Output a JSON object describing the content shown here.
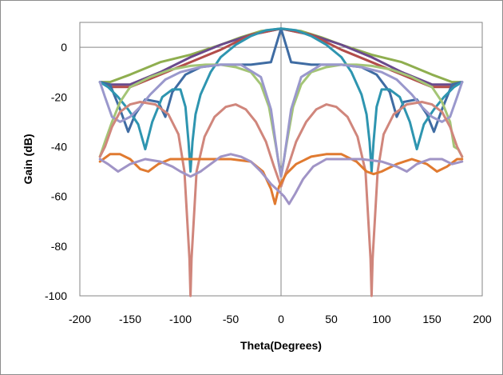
{
  "chart_data": {
    "type": "line",
    "title": "",
    "xlabel": "Theta(Degrees)",
    "ylabel": "Gain (dB)",
    "xlim": [
      -200,
      200
    ],
    "ylim": [
      -100,
      10
    ],
    "xticks": [
      -200,
      -150,
      -100,
      -50,
      0,
      50,
      100,
      150,
      200
    ],
    "yticks": [
      0,
      -20,
      -40,
      -60,
      -80,
      -100
    ],
    "grid": false,
    "legend": "none",
    "series": [
      {
        "color": "#8fae4f",
        "width": 3,
        "points": [
          [
            -180,
            -14
          ],
          [
            -170,
            -14
          ],
          [
            -150,
            -11
          ],
          [
            -120,
            -6
          ],
          [
            -90,
            -3
          ],
          [
            -60,
            1
          ],
          [
            -40,
            4
          ],
          [
            -20,
            6.5
          ],
          [
            0,
            7.5
          ],
          [
            20,
            6.5
          ],
          [
            40,
            4
          ],
          [
            60,
            1
          ],
          [
            90,
            -3
          ],
          [
            120,
            -6
          ],
          [
            150,
            -11
          ],
          [
            170,
            -14
          ],
          [
            180,
            -14
          ]
        ]
      },
      {
        "color": "#6a4a8c",
        "width": 3,
        "points": [
          [
            -180,
            -14
          ],
          [
            -170,
            -15
          ],
          [
            -150,
            -15
          ],
          [
            -120,
            -10
          ],
          [
            -90,
            -4
          ],
          [
            -60,
            1
          ],
          [
            -30,
            5
          ],
          [
            0,
            7.5
          ],
          [
            30,
            5
          ],
          [
            60,
            1
          ],
          [
            90,
            -4
          ],
          [
            120,
            -10
          ],
          [
            150,
            -15
          ],
          [
            170,
            -15
          ],
          [
            180,
            -14
          ]
        ]
      },
      {
        "color": "#b24d4a",
        "width": 3,
        "points": [
          [
            -180,
            -14
          ],
          [
            -170,
            -16
          ],
          [
            -150,
            -16
          ],
          [
            -120,
            -11
          ],
          [
            -90,
            -6
          ],
          [
            -60,
            -1
          ],
          [
            -30,
            5
          ],
          [
            0,
            7.5
          ],
          [
            30,
            5
          ],
          [
            60,
            -1
          ],
          [
            90,
            -6
          ],
          [
            120,
            -11
          ],
          [
            150,
            -16
          ],
          [
            170,
            -16
          ],
          [
            180,
            -14
          ]
        ]
      },
      {
        "color": "#3f6ca3",
        "width": 3,
        "points": [
          [
            -180,
            -14
          ],
          [
            -170,
            -15
          ],
          [
            -160,
            -25
          ],
          [
            -152,
            -34
          ],
          [
            -145,
            -27
          ],
          [
            -135,
            -21
          ],
          [
            -122,
            -22
          ],
          [
            -115,
            -28
          ],
          [
            -108,
            -18
          ],
          [
            -95,
            -11
          ],
          [
            -80,
            -8
          ],
          [
            -60,
            -7
          ],
          [
            -30,
            -7
          ],
          [
            -10,
            -6
          ],
          [
            0,
            7.5
          ],
          [
            10,
            -6
          ],
          [
            30,
            -7
          ],
          [
            60,
            -7
          ],
          [
            80,
            -8
          ],
          [
            95,
            -11
          ],
          [
            108,
            -18
          ],
          [
            115,
            -28
          ],
          [
            122,
            -22
          ],
          [
            135,
            -21
          ],
          [
            145,
            -27
          ],
          [
            152,
            -34
          ],
          [
            160,
            -25
          ],
          [
            170,
            -15
          ],
          [
            180,
            -14
          ]
        ]
      },
      {
        "color": "#2e95b0",
        "width": 3,
        "points": [
          [
            -180,
            -14
          ],
          [
            -172,
            -16
          ],
          [
            -162,
            -20
          ],
          [
            -152,
            -25
          ],
          [
            -142,
            -31
          ],
          [
            -135,
            -41
          ],
          [
            -128,
            -30
          ],
          [
            -118,
            -20
          ],
          [
            -108,
            -17
          ],
          [
            -100,
            -17
          ],
          [
            -95,
            -24
          ],
          [
            -92,
            -38
          ],
          [
            -90,
            -50
          ],
          [
            -88,
            -38
          ],
          [
            -85,
            -27
          ],
          [
            -80,
            -19
          ],
          [
            -70,
            -10
          ],
          [
            -60,
            -4
          ],
          [
            -45,
            1
          ],
          [
            -30,
            4.5
          ],
          [
            -15,
            6.8
          ],
          [
            0,
            7.5
          ],
          [
            15,
            6.8
          ],
          [
            30,
            4.5
          ],
          [
            45,
            1
          ],
          [
            60,
            -4
          ],
          [
            70,
            -10
          ],
          [
            80,
            -19
          ],
          [
            85,
            -27
          ],
          [
            88,
            -38
          ],
          [
            90,
            -50
          ],
          [
            92,
            -38
          ],
          [
            95,
            -24
          ],
          [
            100,
            -17
          ],
          [
            108,
            -17
          ],
          [
            118,
            -20
          ],
          [
            128,
            -30
          ],
          [
            135,
            -41
          ],
          [
            142,
            -31
          ],
          [
            152,
            -25
          ],
          [
            162,
            -20
          ],
          [
            172,
            -16
          ],
          [
            180,
            -14
          ]
        ]
      },
      {
        "color": "#a4c576",
        "width": 3,
        "points": [
          [
            -180,
            -44
          ],
          [
            -175,
            -38
          ],
          [
            -168,
            -30
          ],
          [
            -160,
            -22
          ],
          [
            -150,
            -16
          ],
          [
            -130,
            -12
          ],
          [
            -110,
            -9
          ],
          [
            -90,
            -7.5
          ],
          [
            -75,
            -7
          ],
          [
            -60,
            -7
          ],
          [
            -45,
            -8
          ],
          [
            -30,
            -10
          ],
          [
            -20,
            -15
          ],
          [
            -12,
            -24
          ],
          [
            -5,
            -40
          ],
          [
            0,
            -52
          ],
          [
            5,
            -40
          ],
          [
            12,
            -24
          ],
          [
            20,
            -15
          ],
          [
            30,
            -10
          ],
          [
            45,
            -8
          ],
          [
            60,
            -7
          ],
          [
            75,
            -7
          ],
          [
            90,
            -7.5
          ],
          [
            110,
            -9
          ],
          [
            130,
            -12
          ],
          [
            150,
            -16
          ],
          [
            160,
            -22
          ],
          [
            168,
            -30
          ],
          [
            172,
            -40
          ],
          [
            176,
            -41
          ],
          [
            180,
            -44
          ]
        ]
      },
      {
        "color": "#9a98cc",
        "width": 3,
        "points": [
          [
            -180,
            -14
          ],
          [
            -175,
            -20
          ],
          [
            -168,
            -28
          ],
          [
            -160,
            -30
          ],
          [
            -150,
            -28
          ],
          [
            -140,
            -24
          ],
          [
            -130,
            -19
          ],
          [
            -115,
            -13
          ],
          [
            -100,
            -10
          ],
          [
            -80,
            -8
          ],
          [
            -60,
            -7
          ],
          [
            -40,
            -7
          ],
          [
            -20,
            -12
          ],
          [
            -10,
            -25
          ],
          [
            -3,
            -45
          ],
          [
            0,
            -52
          ],
          [
            3,
            -45
          ],
          [
            10,
            -25
          ],
          [
            20,
            -12
          ],
          [
            40,
            -7
          ],
          [
            60,
            -7
          ],
          [
            80,
            -8
          ],
          [
            100,
            -10
          ],
          [
            115,
            -13
          ],
          [
            130,
            -19
          ],
          [
            140,
            -24
          ],
          [
            150,
            -28
          ],
          [
            160,
            -30
          ],
          [
            168,
            -28
          ],
          [
            175,
            -20
          ],
          [
            180,
            -14
          ]
        ]
      },
      {
        "color": "#d0867c",
        "width": 3,
        "points": [
          [
            -180,
            -44
          ],
          [
            -175,
            -40
          ],
          [
            -168,
            -32
          ],
          [
            -160,
            -26
          ],
          [
            -150,
            -23
          ],
          [
            -140,
            -22
          ],
          [
            -125,
            -23
          ],
          [
            -112,
            -27
          ],
          [
            -102,
            -35
          ],
          [
            -96,
            -50
          ],
          [
            -91,
            -85
          ],
          [
            -90,
            -100
          ],
          [
            -89,
            -85
          ],
          [
            -84,
            -50
          ],
          [
            -76,
            -36
          ],
          [
            -66,
            -28
          ],
          [
            -55,
            -24
          ],
          [
            -45,
            -23
          ],
          [
            -35,
            -25
          ],
          [
            -25,
            -30
          ],
          [
            -15,
            -38
          ],
          [
            -7,
            -48
          ],
          [
            0,
            -56
          ],
          [
            7,
            -48
          ],
          [
            15,
            -38
          ],
          [
            25,
            -30
          ],
          [
            35,
            -25
          ],
          [
            45,
            -23
          ],
          [
            55,
            -24
          ],
          [
            66,
            -28
          ],
          [
            76,
            -36
          ],
          [
            84,
            -50
          ],
          [
            89,
            -85
          ],
          [
            90,
            -100
          ],
          [
            91,
            -85
          ],
          [
            96,
            -50
          ],
          [
            102,
            -35
          ],
          [
            112,
            -27
          ],
          [
            125,
            -23
          ],
          [
            140,
            -22
          ],
          [
            150,
            -23
          ],
          [
            160,
            -26
          ],
          [
            168,
            -32
          ],
          [
            175,
            -40
          ],
          [
            180,
            -44
          ]
        ]
      },
      {
        "color": "#e07a30",
        "width": 3,
        "points": [
          [
            -180,
            -46
          ],
          [
            -170,
            -43
          ],
          [
            -160,
            -43
          ],
          [
            -150,
            -45
          ],
          [
            -140,
            -49
          ],
          [
            -132,
            -50
          ],
          [
            -122,
            -47
          ],
          [
            -110,
            -45
          ],
          [
            -90,
            -45
          ],
          [
            -70,
            -45
          ],
          [
            -50,
            -45
          ],
          [
            -30,
            -46
          ],
          [
            -18,
            -50
          ],
          [
            -10,
            -57
          ],
          [
            -6,
            -63
          ],
          [
            -2,
            -56
          ],
          [
            5,
            -51
          ],
          [
            15,
            -47
          ],
          [
            30,
            -44
          ],
          [
            45,
            -43
          ],
          [
            60,
            -43
          ],
          [
            75,
            -46
          ],
          [
            85,
            -50
          ],
          [
            92,
            -51
          ],
          [
            100,
            -50
          ],
          [
            115,
            -47
          ],
          [
            130,
            -45
          ],
          [
            145,
            -47
          ],
          [
            155,
            -50
          ],
          [
            165,
            -48
          ],
          [
            175,
            -45
          ],
          [
            180,
            -45
          ]
        ]
      },
      {
        "color": "#a094c6",
        "width": 3,
        "points": [
          [
            -180,
            -45
          ],
          [
            -172,
            -47
          ],
          [
            -162,
            -50
          ],
          [
            -150,
            -47
          ],
          [
            -135,
            -45
          ],
          [
            -120,
            -46
          ],
          [
            -108,
            -48
          ],
          [
            -100,
            -50
          ],
          [
            -90,
            -52
          ],
          [
            -80,
            -50
          ],
          [
            -70,
            -47
          ],
          [
            -60,
            -44
          ],
          [
            -50,
            -43
          ],
          [
            -40,
            -44
          ],
          [
            -30,
            -46
          ],
          [
            -20,
            -50
          ],
          [
            -10,
            -55
          ],
          [
            -2,
            -58
          ],
          [
            3,
            -60
          ],
          [
            8,
            -63
          ],
          [
            14,
            -59
          ],
          [
            22,
            -53
          ],
          [
            32,
            -48
          ],
          [
            45,
            -45
          ],
          [
            60,
            -45
          ],
          [
            80,
            -45
          ],
          [
            100,
            -46
          ],
          [
            115,
            -48
          ],
          [
            125,
            -50
          ],
          [
            135,
            -47
          ],
          [
            148,
            -45
          ],
          [
            160,
            -45
          ],
          [
            170,
            -47
          ],
          [
            180,
            -46
          ]
        ]
      }
    ]
  }
}
